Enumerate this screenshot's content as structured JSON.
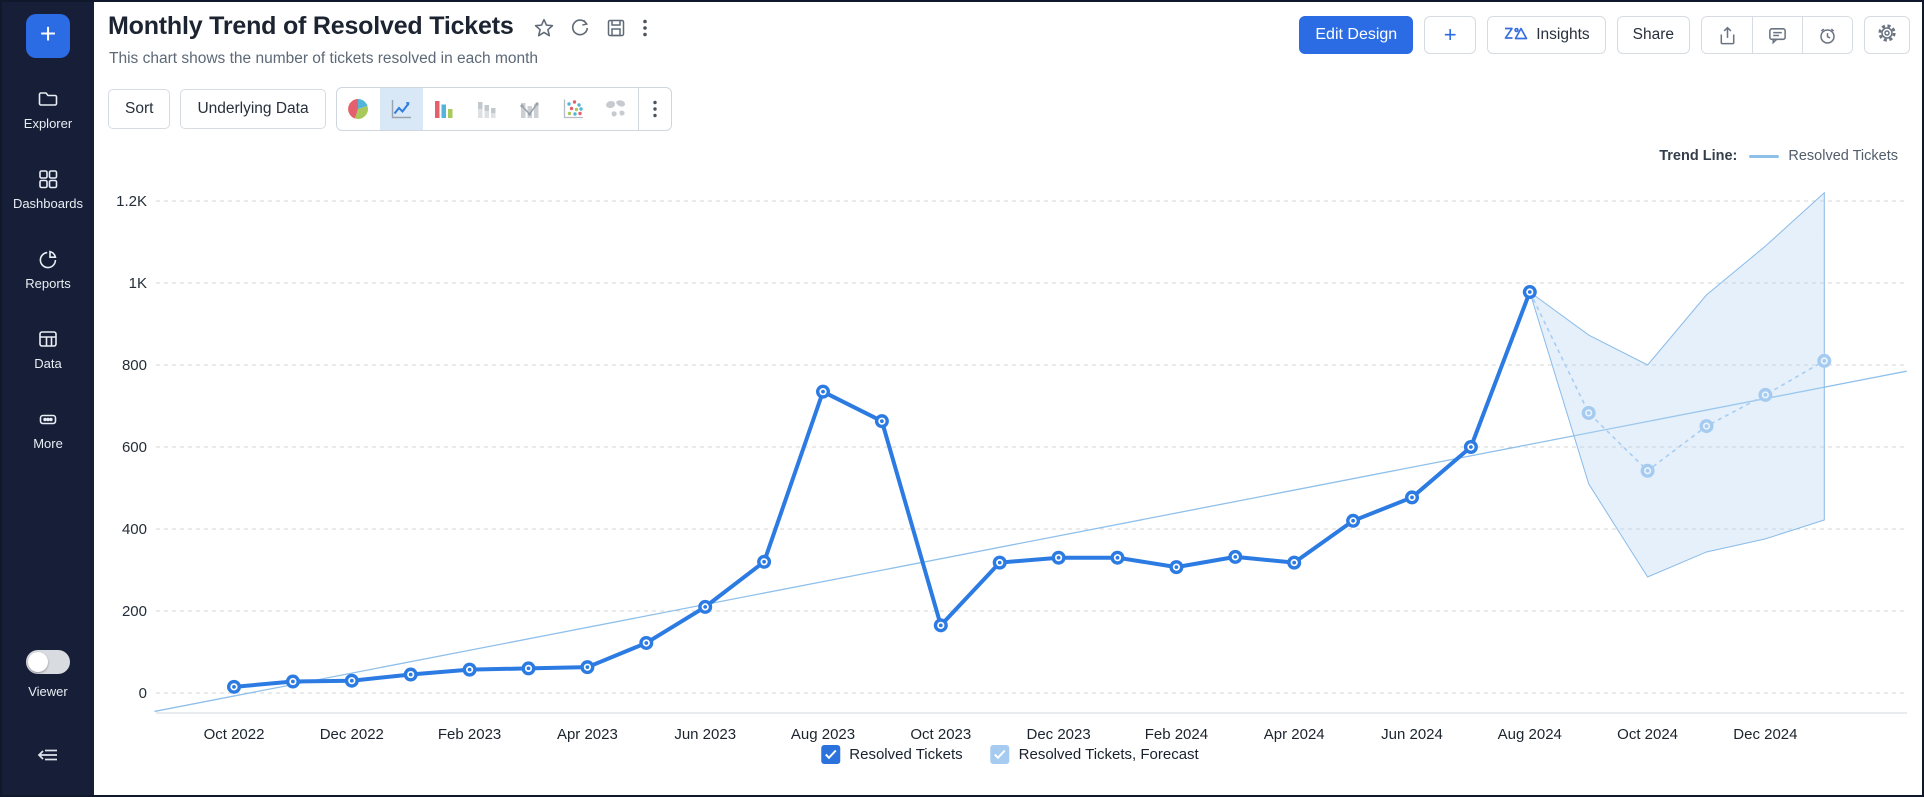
{
  "sidebar": {
    "add_button": "+",
    "items": [
      {
        "label": "Explorer",
        "icon": "folder-icon"
      },
      {
        "label": "Dashboards",
        "icon": "grid-icon"
      },
      {
        "label": "Reports",
        "icon": "pie-icon"
      },
      {
        "label": "Data",
        "icon": "table-icon"
      },
      {
        "label": "More",
        "icon": "ellipsis-icon"
      }
    ],
    "viewer_label": "Viewer",
    "viewer_toggle_state": "off",
    "collapse_icon": "collapse-left-icon"
  },
  "header": {
    "title": "Monthly Trend of Resolved Tickets",
    "subtitle": "This chart shows the number of tickets resolved in each month",
    "title_icons": [
      "star-icon",
      "refresh-icon",
      "save-icon",
      "kebab-menu-icon"
    ],
    "actions": {
      "edit_design": "Edit Design",
      "add": "+",
      "insights": "Insights",
      "share": "Share",
      "icon_buttons": [
        "export-icon",
        "comment-icon",
        "history-icon",
        "settings-gear-icon"
      ]
    }
  },
  "toolbar": {
    "sort": "Sort",
    "underlying_data": "Underlying Data",
    "chart_types": [
      "pie-chart-icon",
      "line-chart-icon",
      "bar-chart-icon",
      "stacked-bar-icon",
      "combo-chart-icon",
      "scatter-chart-icon",
      "map-chart-icon"
    ],
    "selected_chart_type": "line-chart-icon"
  },
  "trend_legend": {
    "label": "Trend Line:",
    "series": "Resolved Tickets"
  },
  "legend": [
    {
      "label": "Resolved Tickets",
      "checked": true,
      "color": "#2b72dd"
    },
    {
      "label": "Resolved Tickets, Forecast",
      "checked": true,
      "color": "#a5cbf0"
    }
  ],
  "colors": {
    "accent_blue": "#2b6be3",
    "line_blue": "#2c7be2",
    "forecast_blue": "#a9cdf1",
    "band_fill": "rgba(180,212,242,0.35)",
    "band_stroke": "#8abbe9",
    "trend_line": "#8fc0ea",
    "grid": "#d6d6d6",
    "sidebar_bg": "#161f37"
  },
  "chart_data": {
    "type": "line",
    "title": "Monthly Trend of Resolved Tickets",
    "xlabel": "",
    "ylabel": "",
    "ylim": [
      0,
      1200
    ],
    "grid": "horizontal-dashed",
    "legend_position": "bottom-center",
    "x": [
      "Oct 2022",
      "Nov 2022",
      "Dec 2022",
      "Jan 2023",
      "Feb 2023",
      "Mar 2023",
      "Apr 2023",
      "May 2023",
      "Jun 2023",
      "Jul 2023",
      "Aug 2023",
      "Sep 2023",
      "Oct 2023",
      "Nov 2023",
      "Dec 2023",
      "Jan 2024",
      "Feb 2024",
      "Mar 2024",
      "Apr 2024",
      "May 2024",
      "Jun 2024",
      "Jul 2024",
      "Aug 2024",
      "Sep 2024",
      "Oct 2024",
      "Nov 2024",
      "Dec 2024",
      "Jan 2025"
    ],
    "x_tick_labels": [
      "Oct 2022",
      "Dec 2022",
      "Feb 2023",
      "Apr 2023",
      "Jun 2023",
      "Aug 2023",
      "Oct 2023",
      "Dec 2023",
      "Feb 2024",
      "Apr 2024",
      "Jun 2024",
      "Aug 2024",
      "Oct 2024",
      "Dec 2024"
    ],
    "x_label_every": 2,
    "yticks": [
      {
        "value": 0,
        "label": "0"
      },
      {
        "value": 200,
        "label": "200"
      },
      {
        "value": 400,
        "label": "400"
      },
      {
        "value": 600,
        "label": "600"
      },
      {
        "value": 800,
        "label": "800"
      },
      {
        "value": 1000,
        "label": "1K"
      },
      {
        "value": 1200,
        "label": "1.2K"
      }
    ],
    "series": [
      {
        "name": "Resolved Tickets",
        "values": [
          15,
          28,
          30,
          45,
          57,
          60,
          63,
          122,
          210,
          320,
          735,
          663,
          165,
          318,
          330,
          330,
          307,
          332,
          318,
          420,
          477,
          600,
          978
        ]
      }
    ],
    "forecast": {
      "name": "Resolved Tickets, Forecast",
      "start_index": 22,
      "values": [
        683,
        542,
        651,
        727,
        810
      ],
      "band_upper": [
        978,
        873,
        800,
        971,
        1090,
        1220
      ],
      "band_lower": [
        978,
        510,
        283,
        344,
        376,
        422
      ]
    },
    "trend_line": {
      "name": "Resolved Tickets",
      "start_index": -1.35,
      "start_value": -45,
      "end_index": 28.4,
      "end_value": 785
    }
  }
}
